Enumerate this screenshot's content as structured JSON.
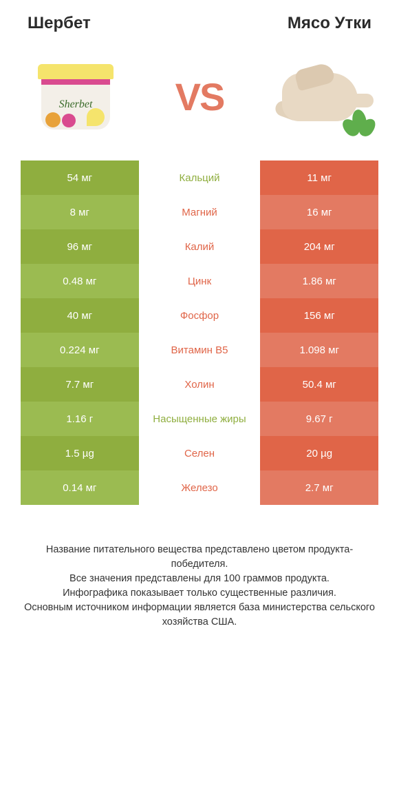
{
  "colors": {
    "left_dark": "#8fae3f",
    "left_light": "#9bbb51",
    "right_dark": "#e06548",
    "right_light": "#e37a62",
    "mid_green": "#8fae3f",
    "mid_orange": "#e06548"
  },
  "header": {
    "left_title": "Шербет",
    "right_title": "Мясо Утки",
    "vs": "VS"
  },
  "rows": [
    {
      "left": "54 мг",
      "mid": "Кальций",
      "right": "11 мг",
      "mid_side": "left"
    },
    {
      "left": "8 мг",
      "mid": "Магний",
      "right": "16 мг",
      "mid_side": "right"
    },
    {
      "left": "96 мг",
      "mid": "Калий",
      "right": "204 мг",
      "mid_side": "right"
    },
    {
      "left": "0.48 мг",
      "mid": "Цинк",
      "right": "1.86 мг",
      "mid_side": "right"
    },
    {
      "left": "40 мг",
      "mid": "Фосфор",
      "right": "156 мг",
      "mid_side": "right"
    },
    {
      "left": "0.224 мг",
      "mid": "Витамин B5",
      "right": "1.098 мг",
      "mid_side": "right"
    },
    {
      "left": "7.7 мг",
      "mid": "Холин",
      "right": "50.4 мг",
      "mid_side": "right"
    },
    {
      "left": "1.16 г",
      "mid": "Насыщенные жиры",
      "right": "9.67 г",
      "mid_side": "left"
    },
    {
      "left": "1.5 µg",
      "mid": "Селен",
      "right": "20 µg",
      "mid_side": "right"
    },
    {
      "left": "0.14 мг",
      "mid": "Железо",
      "right": "2.7 мг",
      "mid_side": "right"
    }
  ],
  "footer": "Название питательного вещества представлено цветом продукта-победителя.\nВсе значения представлены для 100 граммов продукта.\nИнфографика показывает только существенные различия.\nОсновным источником информации является база министерства сельского хозяйства США."
}
